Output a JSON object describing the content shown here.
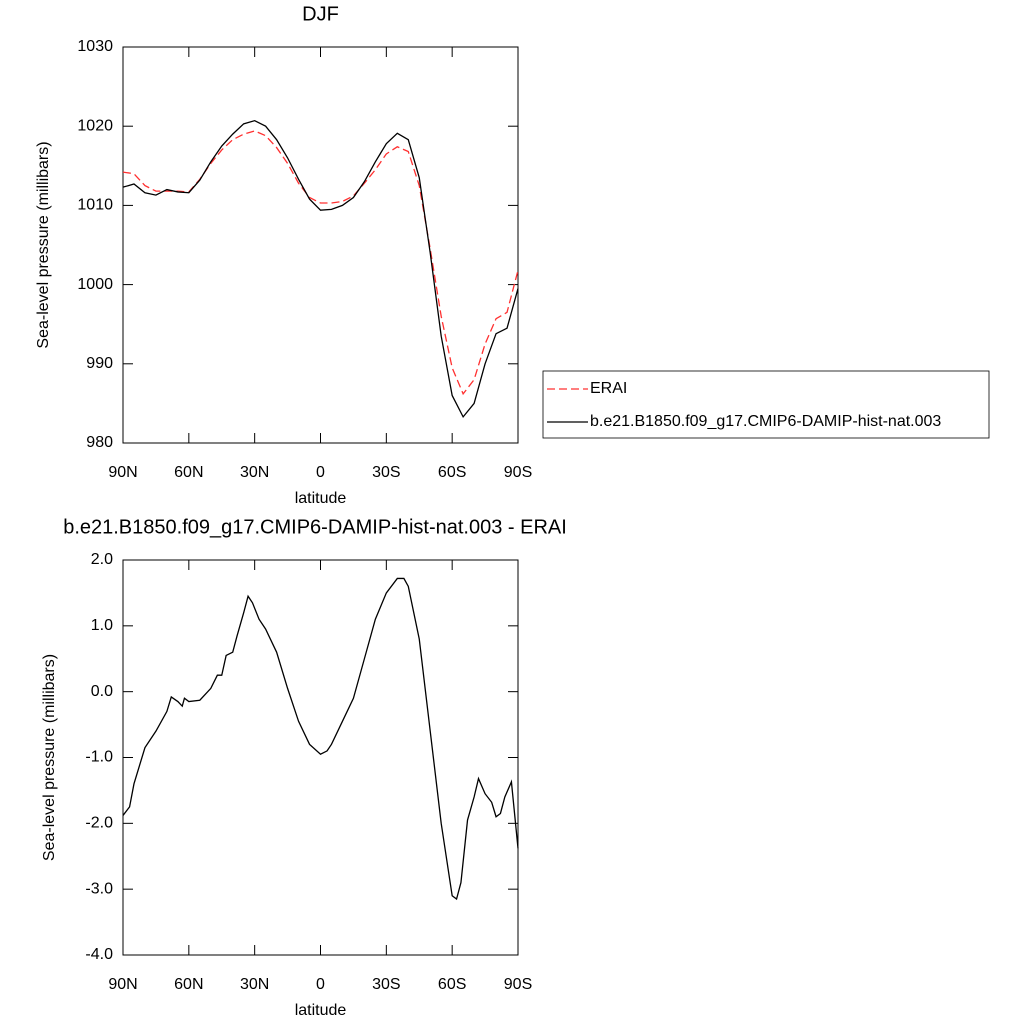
{
  "chart_data": [
    {
      "type": "line",
      "title": "DJF",
      "xlabel": "latitude",
      "ylabel": "Sea-level pressure (millibars)",
      "x": [
        90,
        85,
        80,
        75,
        70,
        65,
        60,
        55,
        50,
        45,
        40,
        35,
        30,
        25,
        20,
        15,
        10,
        5,
        0,
        -5,
        -10,
        -15,
        -20,
        -25,
        -30,
        -35,
        -40,
        -45,
        -50,
        -55,
        -60,
        -65,
        -70,
        -75,
        -80,
        -85,
        -90
      ],
      "series": [
        {
          "name": "ERAI",
          "color": "#ff3030",
          "dashed": true,
          "values": [
            1014.2,
            1014.0,
            1012.5,
            1011.8,
            1011.8,
            1011.8,
            1011.7,
            1013.3,
            1015.3,
            1017.0,
            1018.3,
            1019.0,
            1019.4,
            1018.8,
            1017.3,
            1015.3,
            1012.8,
            1011.0,
            1010.3,
            1010.3,
            1010.5,
            1011.2,
            1012.8,
            1014.5,
            1016.5,
            1017.4,
            1016.8,
            1012.5,
            1004.5,
            996.0,
            989.5,
            986.2,
            988.0,
            992.5,
            995.7,
            996.5,
            1001.8
          ]
        },
        {
          "name": "b.e21.B1850.f09_g17.CMIP6-DAMIP-hist-nat.003",
          "color": "#000000",
          "dashed": false,
          "values": [
            1012.3,
            1012.7,
            1011.6,
            1011.3,
            1012.0,
            1011.7,
            1011.6,
            1013.2,
            1015.5,
            1017.5,
            1019.0,
            1020.3,
            1020.7,
            1020.0,
            1018.3,
            1016.0,
            1013.3,
            1010.8,
            1009.4,
            1009.5,
            1010.0,
            1011.0,
            1013.0,
            1015.5,
            1017.8,
            1019.1,
            1018.3,
            1013.5,
            1004.0,
            993.5,
            986.0,
            983.3,
            985.0,
            990.0,
            993.8,
            994.5,
            999.5
          ]
        }
      ],
      "xlim": [
        90,
        -90
      ],
      "xticks": [
        {
          "value": 90,
          "label": "90N"
        },
        {
          "value": 60,
          "label": "60N"
        },
        {
          "value": 30,
          "label": "30N"
        },
        0,
        {
          "value": -30,
          "label": "30S"
        },
        {
          "value": -60,
          "label": "60S"
        },
        {
          "value": -90,
          "label": "90S"
        }
      ],
      "ylim": [
        980,
        1030
      ],
      "yticks": [
        980,
        990,
        1000,
        1010,
        1020,
        1030
      ],
      "legend": "right"
    },
    {
      "type": "line",
      "title": "b.e21.B1850.f09_g17.CMIP6-DAMIP-hist-nat.003 - ERAI",
      "xlabel": "latitude",
      "ylabel": "Sea-level pressure (millibars)",
      "x": [
        90,
        87,
        85,
        80,
        75,
        70,
        68,
        65,
        63,
        62,
        60,
        55,
        50,
        47,
        45,
        43,
        40,
        38,
        35,
        33,
        31,
        28,
        25,
        20,
        15,
        10,
        5,
        0,
        -3,
        -5,
        -10,
        -15,
        -20,
        -25,
        -30,
        -35,
        -38,
        -40,
        -45,
        -50,
        -55,
        -60,
        -62,
        -64,
        -67,
        -70,
        -72,
        -75,
        -78,
        -80,
        -82,
        -84,
        -87,
        -90
      ],
      "series": [
        {
          "color": "#000000",
          "dashed": false,
          "values": [
            -1.88,
            -1.75,
            -1.4,
            -0.85,
            -0.6,
            -0.3,
            -0.08,
            -0.15,
            -0.22,
            -0.1,
            -0.15,
            -0.13,
            0.05,
            0.25,
            0.25,
            0.55,
            0.6,
            0.85,
            1.2,
            1.45,
            1.35,
            1.1,
            0.95,
            0.6,
            0.05,
            -0.45,
            -0.8,
            -0.95,
            -0.9,
            -0.8,
            -0.45,
            -0.1,
            0.5,
            1.1,
            1.5,
            1.72,
            1.72,
            1.6,
            0.8,
            -0.6,
            -2.0,
            -3.1,
            -3.15,
            -2.9,
            -1.95,
            -1.6,
            -1.32,
            -1.55,
            -1.68,
            -1.9,
            -1.85,
            -1.6,
            -1.37,
            -2.38
          ]
        }
      ],
      "xlim": [
        90,
        -90
      ],
      "xticks": [
        {
          "value": 90,
          "label": "90N"
        },
        {
          "value": 60,
          "label": "60N"
        },
        {
          "value": 30,
          "label": "30N"
        },
        0,
        {
          "value": -30,
          "label": "30S"
        },
        {
          "value": -60,
          "label": "60S"
        },
        {
          "value": -90,
          "label": "90S"
        }
      ],
      "ylim": [
        -4,
        2
      ],
      "yticks": [
        {
          "value": -4,
          "label": "-4.0"
        },
        {
          "value": -3,
          "label": "-3.0"
        },
        {
          "value": -2,
          "label": "-2.0"
        },
        {
          "value": -1,
          "label": "-1.0"
        },
        {
          "value": 0,
          "label": "0.0"
        },
        {
          "value": 1,
          "label": "1.0"
        },
        {
          "value": 2,
          "label": "2.0"
        }
      ]
    }
  ]
}
